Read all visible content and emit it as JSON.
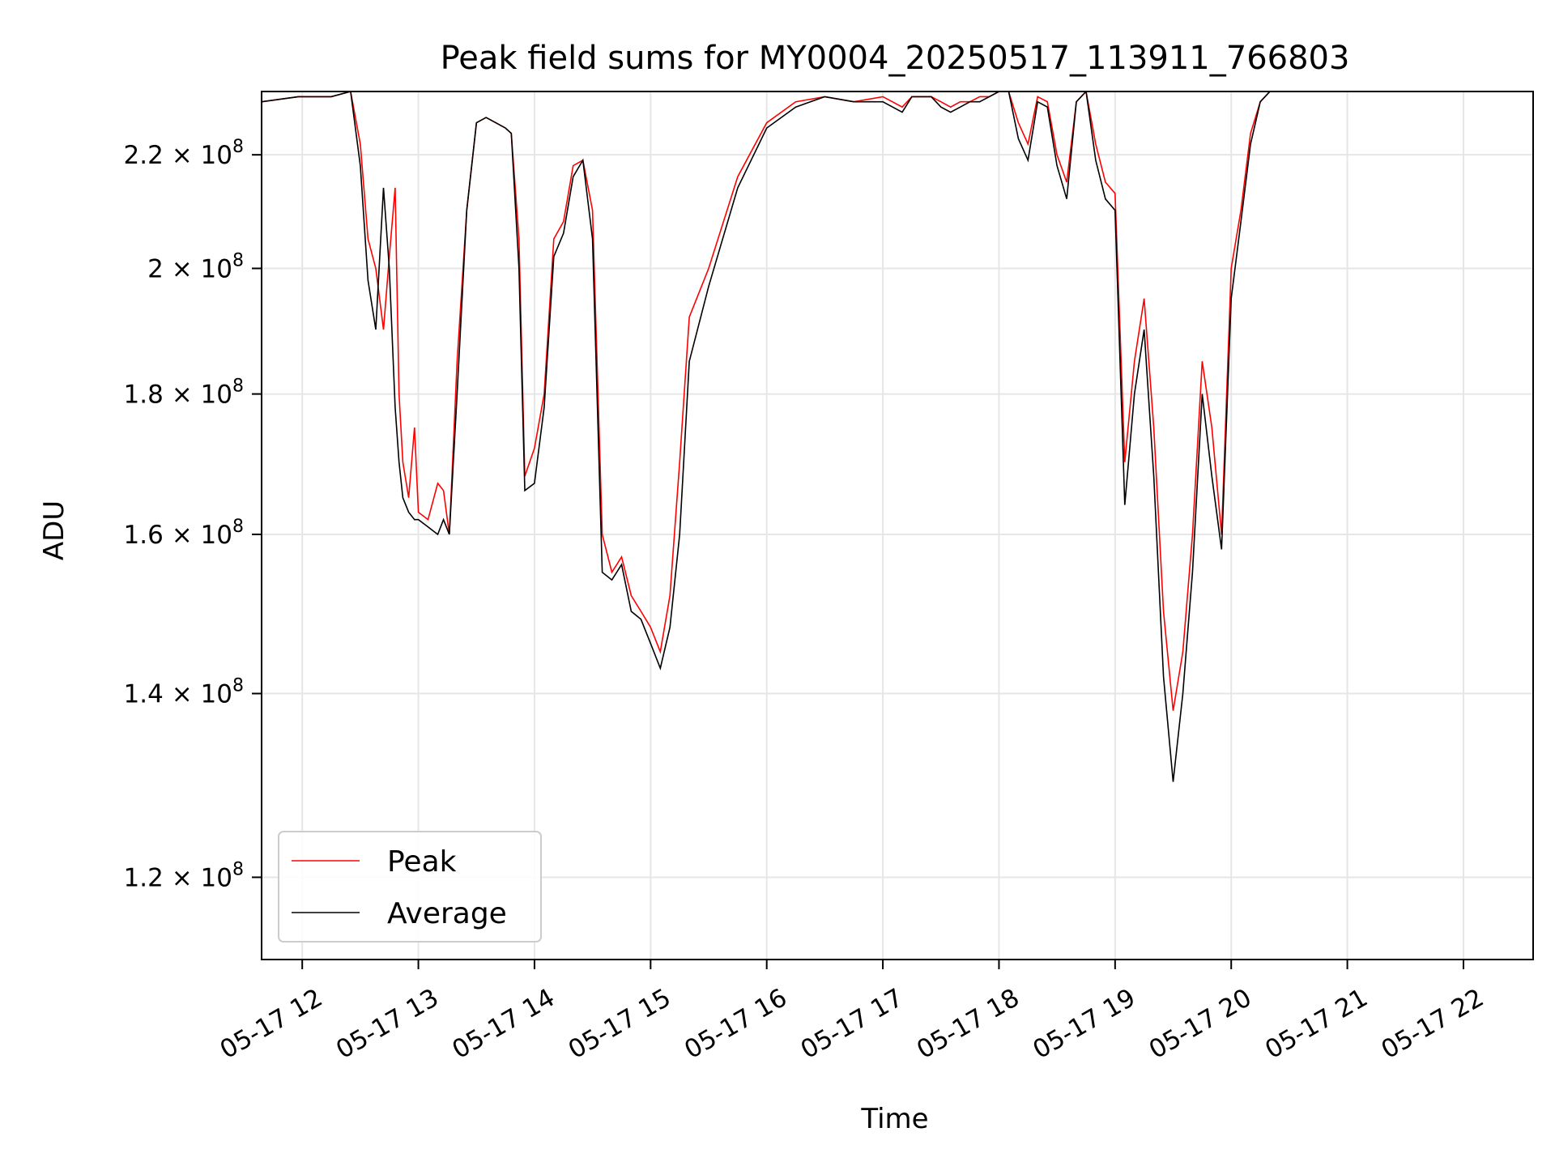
{
  "chart_data": {
    "type": "line",
    "title": "Peak field sums for MY0004_20250517_113911_766803",
    "xlabel": "Time",
    "ylabel": "ADU",
    "y_scale": "log",
    "ylim": [
      112000000,
      232000000
    ],
    "xlim": [
      "2025-05-17 11:39",
      "2025-05-17 22:36"
    ],
    "grid": true,
    "legend_position": "lower-left",
    "x_ticks": [
      {
        "t": "2025-05-17 12:00",
        "label": "05-17 12"
      },
      {
        "t": "2025-05-17 13:00",
        "label": "05-17 13"
      },
      {
        "t": "2025-05-17 14:00",
        "label": "05-17 14"
      },
      {
        "t": "2025-05-17 15:00",
        "label": "05-17 15"
      },
      {
        "t": "2025-05-17 16:00",
        "label": "05-17 16"
      },
      {
        "t": "2025-05-17 17:00",
        "label": "05-17 17"
      },
      {
        "t": "2025-05-17 18:00",
        "label": "05-17 18"
      },
      {
        "t": "2025-05-17 19:00",
        "label": "05-17 19"
      },
      {
        "t": "2025-05-17 20:00",
        "label": "05-17 20"
      },
      {
        "t": "2025-05-17 21:00",
        "label": "05-17 21"
      },
      {
        "t": "2025-05-17 22:00",
        "label": "05-17 22"
      }
    ],
    "y_ticks": [
      {
        "value": 120000000,
        "mantissa": "1.2",
        "base": "10",
        "exponent": "8"
      },
      {
        "value": 140000000,
        "mantissa": "1.4",
        "base": "10",
        "exponent": "8"
      },
      {
        "value": 160000000,
        "mantissa": "1.6",
        "base": "10",
        "exponent": "8"
      },
      {
        "value": 180000000,
        "mantissa": "1.8",
        "base": "10",
        "exponent": "8"
      },
      {
        "value": 200000000,
        "mantissa": "2",
        "base": "10",
        "exponent": "8"
      },
      {
        "value": 220000000,
        "mantissa": "2.2",
        "base": "10",
        "exponent": "8"
      }
    ],
    "series": [
      {
        "name": "Peak",
        "color": "#ff0000",
        "x": [
          "2025-05-17 11:39",
          "2025-05-17 11:58",
          "2025-05-17 12:15",
          "2025-05-17 12:25",
          "2025-05-17 12:30",
          "2025-05-17 12:34",
          "2025-05-17 12:38",
          "2025-05-17 12:42",
          "2025-05-17 12:45",
          "2025-05-17 12:48",
          "2025-05-17 12:50",
          "2025-05-17 12:52",
          "2025-05-17 12:55",
          "2025-05-17 12:58",
          "2025-05-17 13:00",
          "2025-05-17 13:05",
          "2025-05-17 13:10",
          "2025-05-17 13:13",
          "2025-05-17 13:16",
          "2025-05-17 13:20",
          "2025-05-17 13:25",
          "2025-05-17 13:30",
          "2025-05-17 13:35",
          "2025-05-17 13:40",
          "2025-05-17 13:45",
          "2025-05-17 13:48",
          "2025-05-17 13:52",
          "2025-05-17 13:55",
          "2025-05-17 14:00",
          "2025-05-17 14:05",
          "2025-05-17 14:10",
          "2025-05-17 14:15",
          "2025-05-17 14:20",
          "2025-05-17 14:25",
          "2025-05-17 14:30",
          "2025-05-17 14:35",
          "2025-05-17 14:40",
          "2025-05-17 14:45",
          "2025-05-17 14:50",
          "2025-05-17 14:55",
          "2025-05-17 15:00",
          "2025-05-17 15:05",
          "2025-05-17 15:10",
          "2025-05-17 15:15",
          "2025-05-17 15:20",
          "2025-05-17 15:30",
          "2025-05-17 15:45",
          "2025-05-17 16:00",
          "2025-05-17 16:15",
          "2025-05-17 16:30",
          "2025-05-17 16:45",
          "2025-05-17 17:00",
          "2025-05-17 17:10",
          "2025-05-17 17:15",
          "2025-05-17 17:20",
          "2025-05-17 17:25",
          "2025-05-17 17:30",
          "2025-05-17 17:35",
          "2025-05-17 17:40",
          "2025-05-17 17:45",
          "2025-05-17 17:50",
          "2025-05-17 17:55",
          "2025-05-17 18:00",
          "2025-05-17 18:05",
          "2025-05-17 18:10",
          "2025-05-17 18:15",
          "2025-05-17 18:20",
          "2025-05-17 18:25",
          "2025-05-17 18:30",
          "2025-05-17 18:35",
          "2025-05-17 18:40",
          "2025-05-17 18:45",
          "2025-05-17 18:50",
          "2025-05-17 18:55",
          "2025-05-17 19:00",
          "2025-05-17 19:05",
          "2025-05-17 19:10",
          "2025-05-17 19:15",
          "2025-05-17 19:20",
          "2025-05-17 19:25",
          "2025-05-17 19:30",
          "2025-05-17 19:35",
          "2025-05-17 19:40",
          "2025-05-17 19:45",
          "2025-05-17 19:50",
          "2025-05-17 19:55",
          "2025-05-17 20:00",
          "2025-05-17 20:05",
          "2025-05-17 20:10",
          "2025-05-17 20:15",
          "2025-05-17 20:20",
          "2025-05-17 20:25",
          "2025-05-17 20:30",
          "2025-05-17 20:35",
          "2025-05-17 20:40",
          "2025-05-17 20:45",
          "2025-05-17 20:50",
          "2025-05-17 20:55",
          "2025-05-17 21:00",
          "2025-05-17 21:05",
          "2025-05-17 21:10",
          "2025-05-17 21:15",
          "2025-05-17 21:20",
          "2025-05-17 21:25",
          "2025-05-17 21:30",
          "2025-05-17 21:35",
          "2025-05-17 21:40",
          "2025-05-17 21:45",
          "2025-05-17 21:50",
          "2025-05-17 21:55",
          "2025-05-17 22:00",
          "2025-05-17 22:05",
          "2025-05-17 22:10",
          "2025-05-17 22:15",
          "2025-05-17 22:20",
          "2025-05-17 22:25",
          "2025-05-17 22:30",
          "2025-05-17 22:36"
        ],
        "values": [
          230000000,
          231000000,
          231000000,
          232000000,
          222000000,
          205000000,
          200000000,
          190000000,
          202000000,
          214000000,
          180000000,
          170000000,
          165000000,
          175000000,
          163000000,
          162000000,
          167000000,
          166000000,
          160000000,
          185000000,
          210000000,
          226000000,
          227000000,
          226000000,
          225000000,
          224000000,
          205000000,
          168000000,
          172000000,
          180000000,
          205000000,
          208000000,
          218000000,
          219000000,
          210000000,
          160000000,
          155000000,
          157000000,
          152000000,
          150000000,
          148000000,
          145000000,
          152000000,
          170000000,
          192000000,
          200000000,
          216000000,
          226000000,
          230000000,
          231000000,
          230000000,
          231000000,
          229000000,
          231000000,
          231000000,
          231000000,
          230000000,
          229000000,
          230000000,
          230000000,
          231000000,
          231000000,
          232000000,
          232000000,
          226000000,
          222000000,
          231000000,
          230000000,
          220000000,
          215000000,
          230000000,
          232000000,
          222000000,
          215000000,
          213000000,
          170000000,
          185000000,
          195000000,
          175000000,
          150000000,
          138000000,
          145000000,
          160000000,
          185000000,
          175000000,
          160000000,
          200000000,
          210000000,
          224000000,
          230000000,
          232000000,
          232000000,
          232000000,
          232000000,
          232000000,
          232000000,
          232000000,
          232000000,
          232000000,
          232000000,
          232000000,
          232000000,
          232000000,
          232000000,
          232000000,
          232000000,
          232000000,
          232000000,
          232000000,
          232000000,
          232000000,
          232000000,
          232000000,
          232000000,
          232000000,
          232000000,
          232000000,
          232000000
        ]
      },
      {
        "name": "Average",
        "color": "#000000",
        "x": [
          "2025-05-17 11:39",
          "2025-05-17 11:58",
          "2025-05-17 12:15",
          "2025-05-17 12:25",
          "2025-05-17 12:30",
          "2025-05-17 12:34",
          "2025-05-17 12:38",
          "2025-05-17 12:42",
          "2025-05-17 12:45",
          "2025-05-17 12:48",
          "2025-05-17 12:50",
          "2025-05-17 12:52",
          "2025-05-17 12:55",
          "2025-05-17 12:58",
          "2025-05-17 13:00",
          "2025-05-17 13:05",
          "2025-05-17 13:10",
          "2025-05-17 13:13",
          "2025-05-17 13:16",
          "2025-05-17 13:20",
          "2025-05-17 13:25",
          "2025-05-17 13:30",
          "2025-05-17 13:35",
          "2025-05-17 13:40",
          "2025-05-17 13:45",
          "2025-05-17 13:48",
          "2025-05-17 13:52",
          "2025-05-17 13:55",
          "2025-05-17 14:00",
          "2025-05-17 14:05",
          "2025-05-17 14:10",
          "2025-05-17 14:15",
          "2025-05-17 14:20",
          "2025-05-17 14:25",
          "2025-05-17 14:30",
          "2025-05-17 14:35",
          "2025-05-17 14:40",
          "2025-05-17 14:45",
          "2025-05-17 14:50",
          "2025-05-17 14:55",
          "2025-05-17 15:00",
          "2025-05-17 15:05",
          "2025-05-17 15:10",
          "2025-05-17 15:15",
          "2025-05-17 15:20",
          "2025-05-17 15:30",
          "2025-05-17 15:45",
          "2025-05-17 16:00",
          "2025-05-17 16:15",
          "2025-05-17 16:30",
          "2025-05-17 16:45",
          "2025-05-17 17:00",
          "2025-05-17 17:10",
          "2025-05-17 17:15",
          "2025-05-17 17:20",
          "2025-05-17 17:25",
          "2025-05-17 17:30",
          "2025-05-17 17:35",
          "2025-05-17 17:40",
          "2025-05-17 17:45",
          "2025-05-17 17:50",
          "2025-05-17 17:55",
          "2025-05-17 18:00",
          "2025-05-17 18:05",
          "2025-05-17 18:10",
          "2025-05-17 18:15",
          "2025-05-17 18:20",
          "2025-05-17 18:25",
          "2025-05-17 18:30",
          "2025-05-17 18:35",
          "2025-05-17 18:40",
          "2025-05-17 18:45",
          "2025-05-17 18:50",
          "2025-05-17 18:55",
          "2025-05-17 19:00",
          "2025-05-17 19:05",
          "2025-05-17 19:10",
          "2025-05-17 19:15",
          "2025-05-17 19:20",
          "2025-05-17 19:25",
          "2025-05-17 19:30",
          "2025-05-17 19:35",
          "2025-05-17 19:40",
          "2025-05-17 19:45",
          "2025-05-17 19:50",
          "2025-05-17 19:55",
          "2025-05-17 20:00",
          "2025-05-17 20:05",
          "2025-05-17 20:10",
          "2025-05-17 20:15",
          "2025-05-17 20:20",
          "2025-05-17 20:25",
          "2025-05-17 20:30",
          "2025-05-17 20:35",
          "2025-05-17 20:40",
          "2025-05-17 20:45",
          "2025-05-17 20:50",
          "2025-05-17 20:55",
          "2025-05-17 21:00",
          "2025-05-17 21:05",
          "2025-05-17 21:10",
          "2025-05-17 21:15",
          "2025-05-17 21:20",
          "2025-05-17 21:25",
          "2025-05-17 21:30",
          "2025-05-17 21:35",
          "2025-05-17 21:40",
          "2025-05-17 21:45",
          "2025-05-17 21:50",
          "2025-05-17 21:55",
          "2025-05-17 22:00",
          "2025-05-17 22:05",
          "2025-05-17 22:10",
          "2025-05-17 22:15",
          "2025-05-17 22:20",
          "2025-05-17 22:25",
          "2025-05-17 22:30",
          "2025-05-17 22:36"
        ],
        "values": [
          230000000,
          231000000,
          231000000,
          232000000,
          218000000,
          198000000,
          190000000,
          214000000,
          200000000,
          178000000,
          170000000,
          165000000,
          163000000,
          162000000,
          162000000,
          161000000,
          160000000,
          162000000,
          160000000,
          180000000,
          210000000,
          226000000,
          227000000,
          226000000,
          225000000,
          224000000,
          200000000,
          166000000,
          167000000,
          178000000,
          202000000,
          206000000,
          216000000,
          219000000,
          205000000,
          155000000,
          154000000,
          156000000,
          150000000,
          149000000,
          146000000,
          143000000,
          148000000,
          160000000,
          185000000,
          197000000,
          214000000,
          225000000,
          229000000,
          231000000,
          230000000,
          230000000,
          228000000,
          231000000,
          231000000,
          231000000,
          229000000,
          228000000,
          229000000,
          230000000,
          230000000,
          231000000,
          232000000,
          232000000,
          223000000,
          219000000,
          230000000,
          229000000,
          218000000,
          212000000,
          230000000,
          232000000,
          219000000,
          212000000,
          210000000,
          164000000,
          180000000,
          190000000,
          168000000,
          142000000,
          130000000,
          140000000,
          155000000,
          180000000,
          168000000,
          158000000,
          195000000,
          208000000,
          222000000,
          230000000,
          232000000,
          232000000,
          232000000,
          232000000,
          232000000,
          232000000,
          232000000,
          232000000,
          232000000,
          232000000,
          232000000,
          232000000,
          232000000,
          232000000,
          232000000,
          232000000,
          232000000,
          232000000,
          232000000,
          232000000,
          232000000,
          232000000,
          232000000,
          232000000,
          232000000,
          232000000,
          232000000,
          232000000
        ]
      }
    ]
  }
}
